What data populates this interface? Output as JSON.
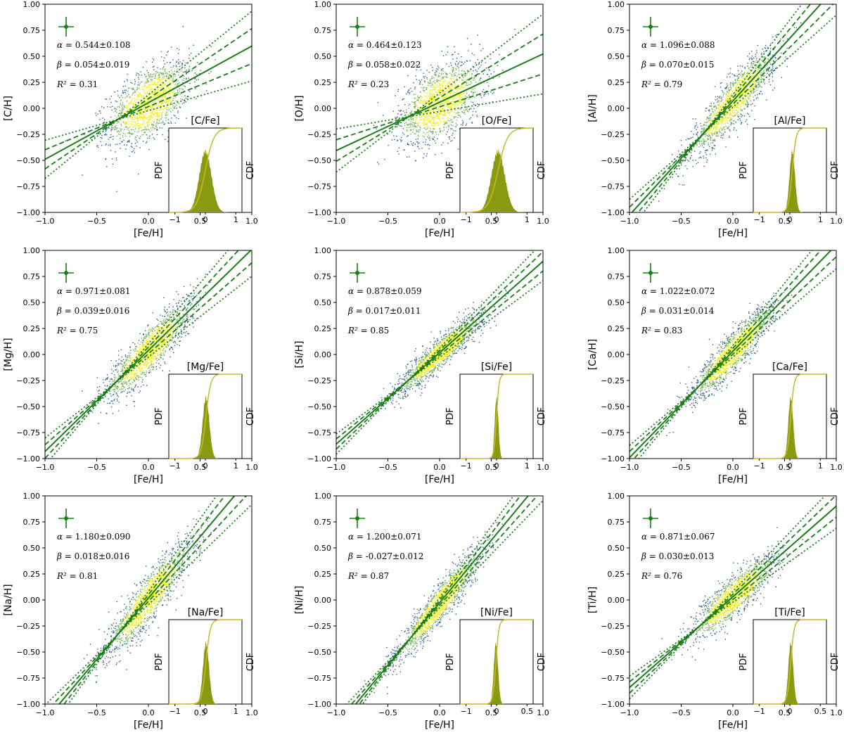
{
  "common": {
    "xlabel": "[Fe/H]",
    "xlim": [
      -1.0,
      1.0
    ],
    "ylim": [
      -1.0,
      1.0
    ],
    "xticks": [
      "−1.0",
      "−0.5",
      "0.0",
      "0.5",
      "1.0"
    ],
    "yticks": [
      "1.00",
      "0.75",
      "0.50",
      "0.25",
      "0.00",
      "−0.25",
      "−0.50",
      "−0.75",
      "−1.00"
    ],
    "inset": {
      "xticks": [
        "−1",
        "0",
        "1"
      ],
      "left_label": "PDF",
      "right_label": "CDF"
    },
    "stat_labels": {
      "alpha": "α = ",
      "beta": "β = ",
      "r2": "R² = "
    },
    "colors": {
      "fit": "#1a7d1a",
      "scatter_dense": "#f2ec1c",
      "scatter_mid": "#6fae53",
      "scatter_sparse": "#2d5c8f",
      "histogram": "#8a9a10",
      "cdf": "#c8b830"
    }
  },
  "chart_data": [
    {
      "type": "scatter",
      "ylabel": "[C/H]",
      "inset_title": "[C/Fe]",
      "alpha_text": "0.544±0.108",
      "beta_text": "0.054±0.019",
      "r2_text": "0.31",
      "slope": 0.544,
      "intercept": 0.054,
      "slope_err": 0.108,
      "intercept_err": 0.019,
      "r2": 0.31,
      "inset_mean": 0.0,
      "inset_sd": 0.2,
      "inset_ticks": [
        "−1",
        "0",
        "1"
      ]
    },
    {
      "type": "scatter",
      "ylabel": "[O/H]",
      "inset_title": "[O/Fe]",
      "alpha_text": "0.464±0.123",
      "beta_text": "0.058±0.022",
      "r2_text": "0.23",
      "slope": 0.464,
      "intercept": 0.058,
      "slope_err": 0.123,
      "intercept_err": 0.022,
      "r2": 0.23,
      "inset_mean": 0.05,
      "inset_sd": 0.22,
      "inset_ticks": [
        "−1",
        "0",
        "1"
      ]
    },
    {
      "type": "scatter",
      "ylabel": "[Al/H]",
      "inset_title": "[Al/Fe]",
      "alpha_text": "1.096±0.088",
      "beta_text": "0.070±0.015",
      "r2_text": "0.79",
      "slope": 1.096,
      "intercept": 0.07,
      "slope_err": 0.088,
      "intercept_err": 0.015,
      "r2": 0.79,
      "inset_mean": 0.08,
      "inset_sd": 0.09,
      "inset_ticks": [
        "−1",
        "0",
        "1"
      ]
    },
    {
      "type": "scatter",
      "ylabel": "[Mg/H]",
      "inset_title": "[Mg/Fe]",
      "alpha_text": "0.971±0.081",
      "beta_text": "0.039±0.016",
      "r2_text": "0.75",
      "slope": 0.971,
      "intercept": 0.039,
      "slope_err": 0.081,
      "intercept_err": 0.016,
      "r2": 0.75,
      "inset_mean": 0.02,
      "inset_sd": 0.11,
      "inset_ticks": [
        "−1",
        "0",
        "1"
      ]
    },
    {
      "type": "scatter",
      "ylabel": "[Si/H]",
      "inset_title": "[Si/Fe]",
      "alpha_text": "0.878±0.059",
      "beta_text": "0.017±0.011",
      "r2_text": "0.85",
      "slope": 0.878,
      "intercept": 0.017,
      "slope_err": 0.059,
      "intercept_err": 0.011,
      "r2": 0.85,
      "inset_mean": 0.0,
      "inset_sd": 0.06,
      "inset_ticks": [
        "−1",
        "0",
        "1"
      ]
    },
    {
      "type": "scatter",
      "ylabel": "[Ca/H]",
      "inset_title": "[Ca/Fe]",
      "alpha_text": "1.022±0.072",
      "beta_text": "0.031±0.014",
      "r2_text": "0.83",
      "slope": 1.022,
      "intercept": 0.031,
      "slope_err": 0.072,
      "intercept_err": 0.014,
      "r2": 0.83,
      "inset_mean": 0.03,
      "inset_sd": 0.08,
      "inset_ticks": [
        "−1",
        "0",
        "1"
      ]
    },
    {
      "type": "scatter",
      "ylabel": "[Na/H]",
      "inset_title": "[Na/Fe]",
      "alpha_text": "1.180±0.090",
      "beta_text": "0.018±0.016",
      "r2_text": "0.81",
      "slope": 1.18,
      "intercept": 0.018,
      "slope_err": 0.09,
      "intercept_err": 0.016,
      "r2": 0.81,
      "inset_mean": 0.02,
      "inset_sd": 0.1,
      "inset_ticks": [
        "−1",
        "0",
        "1"
      ]
    },
    {
      "type": "scatter",
      "ylabel": "[Ni/H]",
      "inset_title": "[Ni/Fe]",
      "alpha_text": "1.200±0.071",
      "beta_text": "-0.027±0.012",
      "r2_text": "0.87",
      "slope": 1.2,
      "intercept": -0.027,
      "slope_err": 0.071,
      "intercept_err": 0.012,
      "r2": 0.87,
      "inset_mean": -0.02,
      "inset_sd": 0.07,
      "inset_ticks": [
        "−1",
        "0",
        "0.5"
      ]
    },
    {
      "type": "scatter",
      "ylabel": "[Ti/H]",
      "inset_title": "[Ti/Fe]",
      "alpha_text": "0.871±0.067",
      "beta_text": "0.030±0.013",
      "r2_text": "0.76",
      "slope": 0.871,
      "intercept": 0.03,
      "slope_err": 0.067,
      "intercept_err": 0.013,
      "r2": 0.76,
      "inset_mean": 0.03,
      "inset_sd": 0.08,
      "inset_ticks": [
        "−1",
        "0",
        "0.5"
      ]
    }
  ]
}
